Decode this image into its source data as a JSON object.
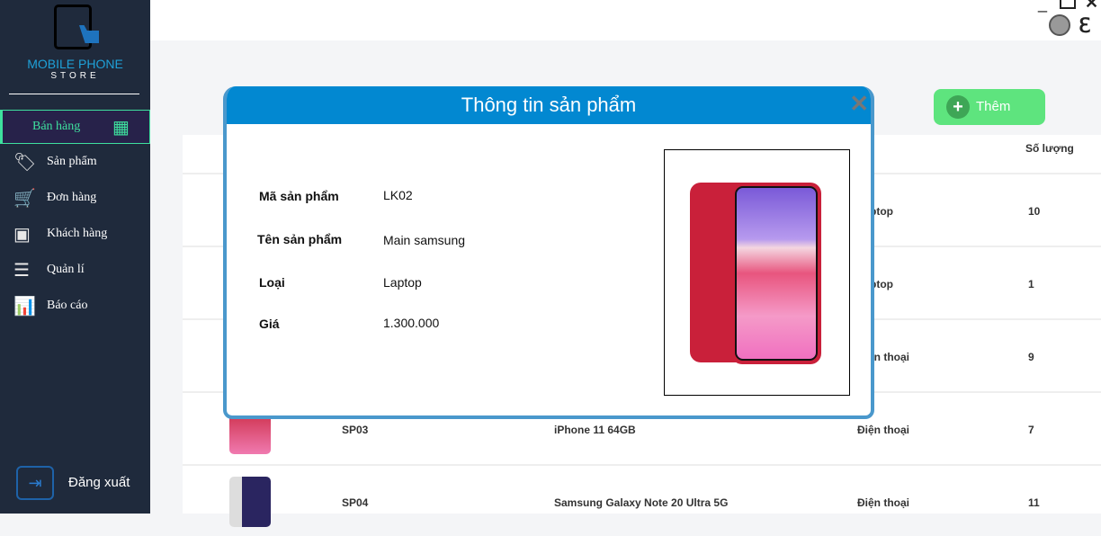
{
  "brand": {
    "line1": "MOBILE PHONE",
    "line2": "STORE"
  },
  "sidebar": {
    "items": [
      {
        "label": "Bán hàng",
        "icon": "cash-register-icon",
        "active": true
      },
      {
        "label": "Sản phẩm",
        "icon": "tag-icon"
      },
      {
        "label": "Đơn hàng",
        "icon": "cart-plus-icon"
      },
      {
        "label": "Khách hàng",
        "icon": "contact-book-icon"
      },
      {
        "label": "Quản lí",
        "icon": "checklist-icon"
      },
      {
        "label": "Báo cáo",
        "icon": "bar-chart-icon"
      }
    ],
    "logout": "Đăng xuất"
  },
  "toolbar": {
    "add_label": "Thêm"
  },
  "table": {
    "headers": {
      "quantity": "Số lượng"
    },
    "rows": [
      {
        "code": "",
        "name": "",
        "type": "Laptop",
        "qty": "10"
      },
      {
        "code": "",
        "name": "",
        "type": "Laptop",
        "qty": "1"
      },
      {
        "code": "",
        "name": "",
        "type": "Điện thoại",
        "qty": "9"
      },
      {
        "code": "SP03",
        "name": "iPhone 11 64GB",
        "type": "Điện thoại",
        "qty": "7"
      },
      {
        "code": "SP04",
        "name": "Samsung Galaxy Note 20 Ultra 5G",
        "type": "Điện thoại",
        "qty": "11"
      }
    ]
  },
  "modal": {
    "title": "Thông tin sản phẩm",
    "fields": [
      {
        "label": "Mã sản phẩm",
        "value": "LK02"
      },
      {
        "label": "Tên sản phẩm",
        "value": "Main samsung"
      },
      {
        "label": "Loại",
        "value": "Laptop"
      },
      {
        "label": "Giá",
        "value": "1.300.000"
      }
    ]
  },
  "colors": {
    "sidebar": "#1f2a3c",
    "accent": "#3ee09e",
    "modal_header": "#0288d1",
    "add_button": "#5ee47e"
  }
}
